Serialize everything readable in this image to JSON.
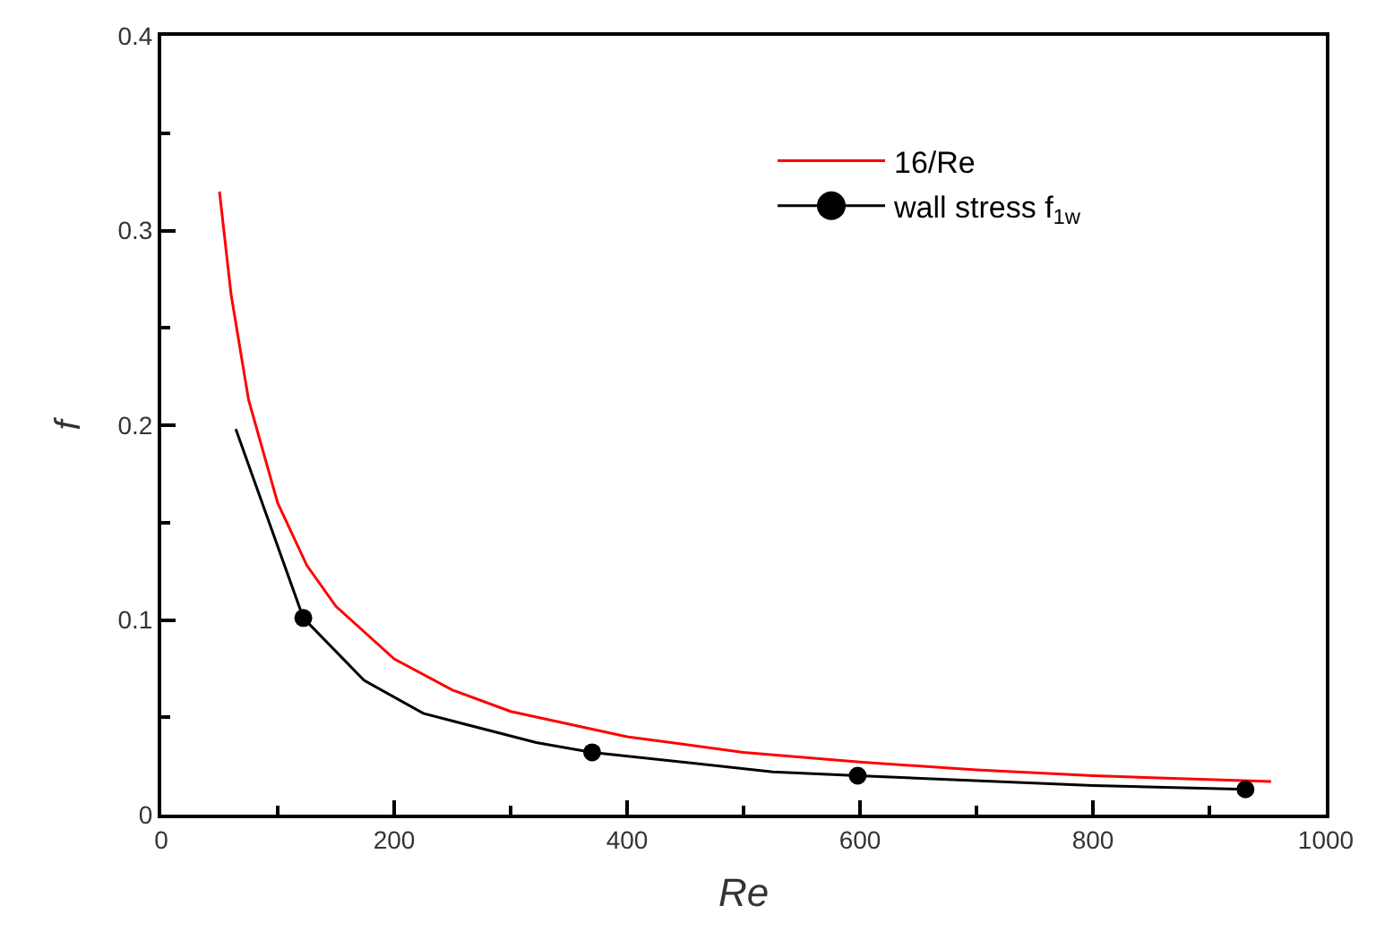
{
  "chart_data": {
    "type": "line",
    "xlabel": "Re",
    "ylabel": "f",
    "series": [
      {
        "name": "16/Re",
        "color": "#ff0000",
        "marker": "none",
        "x": [
          50,
          60,
          75,
          100,
          125,
          150,
          200,
          250,
          300,
          400,
          500,
          600,
          700,
          800,
          953
        ],
        "values": [
          0.32,
          0.267,
          0.213,
          0.16,
          0.128,
          0.107,
          0.08,
          0.064,
          0.053,
          0.04,
          0.032,
          0.027,
          0.023,
          0.02,
          0.017
        ]
      },
      {
        "color": "#000000",
        "marker": "none",
        "x": [
          64,
          122,
          174,
          225,
          322,
          370,
          525,
          598,
          800,
          931
        ],
        "values": [
          0.198,
          0.101,
          0.069,
          0.052,
          0.037,
          0.032,
          0.022,
          0.02,
          0.015,
          0.013
        ]
      },
      {
        "name": "wall stress f$_{1w}$",
        "type": "scatter",
        "color": "#000000",
        "marker": "circle",
        "x": [
          122,
          370,
          598,
          931
        ],
        "values": [
          0.101,
          0.032,
          0.02,
          0.013
        ]
      }
    ],
    "xlim": [
      0,
      1000
    ],
    "xticks": [
      0,
      200,
      400,
      600,
      800,
      1000
    ],
    "ylim": [
      0,
      0.4
    ],
    "yticks": [
      {
        "value": 0,
        "label": "0"
      },
      0.1,
      0.2,
      0.3,
      0.4
    ],
    "legend": "top right",
    "line_style": "solid"
  }
}
